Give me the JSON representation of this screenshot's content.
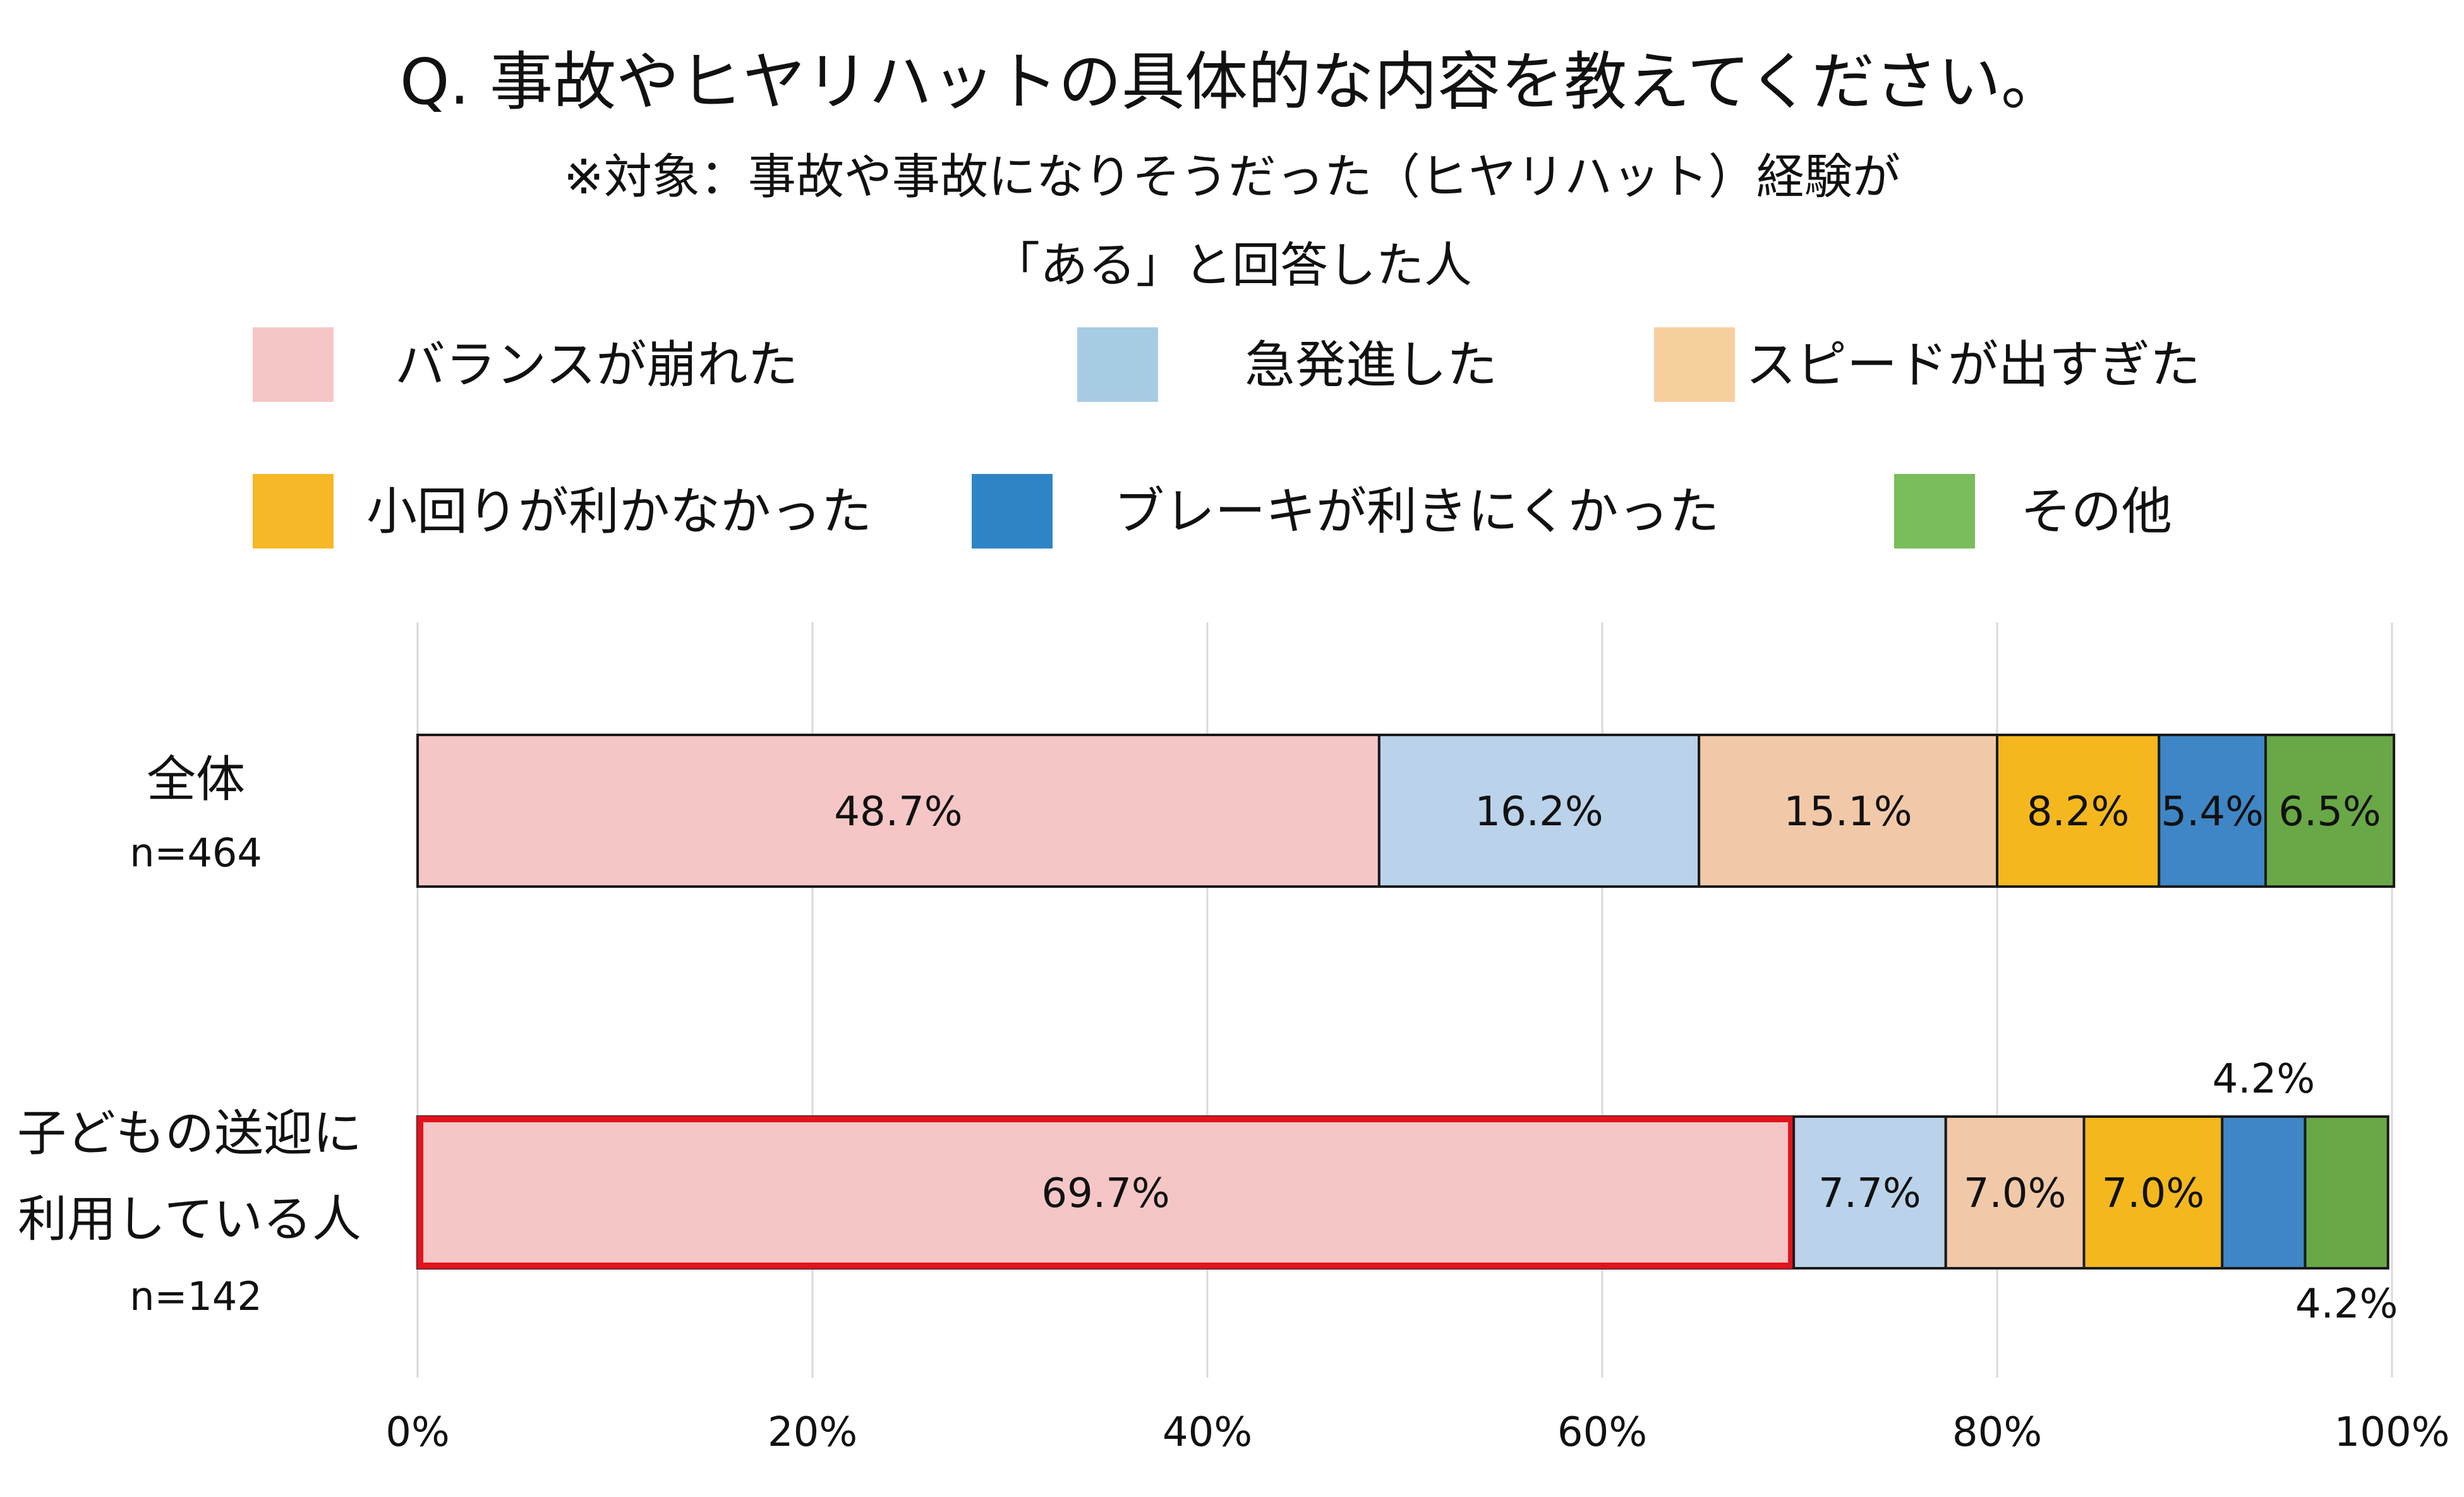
{
  "chart_data": {
    "type": "bar",
    "orientation": "horizontal",
    "stacked": true,
    "title": "Q. 事故やヒヤリハットの具体的な内容を教えてください。",
    "subtitle": [
      "※対象：事故や事故になりそうだった（ヒヤリハット）経験が",
      "「ある」と回答した人"
    ],
    "categories": [
      {
        "label_lines": [
          "全体"
        ],
        "n": "n=464"
      },
      {
        "label_lines": [
          "子どもの送迎に",
          "利用している人"
        ],
        "n": "n=142"
      }
    ],
    "series": [
      {
        "name": "バランスが崩れた",
        "color": "#F6C6C6",
        "values": [
          48.7,
          69.7
        ],
        "labels": [
          "48.7%",
          "69.7%"
        ]
      },
      {
        "name": "急発進した",
        "color": "#BAD3EA",
        "values": [
          16.2,
          7.7
        ],
        "labels": [
          "16.2%",
          "7.7%"
        ]
      },
      {
        "name": "スピードが出すぎた",
        "color": "#F1C9A8",
        "values": [
          15.1,
          7.0
        ],
        "labels": [
          "15.1%",
          "7.0%"
        ]
      },
      {
        "name": "小回りが利かなかった",
        "color": "#F4B81E",
        "values": [
          8.2,
          7.0
        ],
        "labels": [
          "8.2%",
          "7.0%"
        ]
      },
      {
        "name": "ブレーキが利きにくかった",
        "color": "#3F86C6",
        "values": [
          5.4,
          4.2
        ],
        "labels": [
          "5.4%",
          "4.2%"
        ]
      },
      {
        "name": "その他",
        "color": "#69A846",
        "values": [
          6.5,
          4.2
        ],
        "labels": [
          "6.5%",
          "4.2%"
        ]
      }
    ],
    "legend_swatch_colors": [
      "#F6C6C6",
      "#A8CCE4",
      "#F7CF9E",
      "#F7B828",
      "#2F84C6",
      "#79BD5C"
    ],
    "xlim": [
      0,
      100
    ],
    "x_ticks": [
      "0%",
      "20%",
      "40%",
      "60%",
      "80%",
      "100%"
    ],
    "grid": true,
    "legend_position": "top",
    "highlight": {
      "category_index": 1,
      "series_index": 0,
      "color": "#E0141E"
    }
  }
}
